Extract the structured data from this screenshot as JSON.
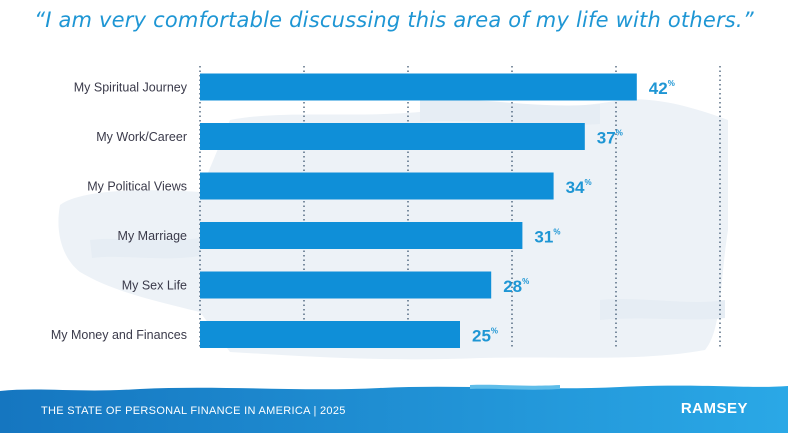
{
  "chart_data": {
    "type": "bar",
    "orientation": "horizontal",
    "title": "“I am very comfortable discussing this area of my life with others.”",
    "categories": [
      "My Spiritual Journey",
      "My Work/Career",
      "My Political Views",
      "My Marriage",
      "My Sex Life",
      "My Money and Finances"
    ],
    "values": [
      42,
      37,
      34,
      31,
      28,
      25
    ],
    "value_suffix": "%",
    "xlim": [
      0,
      50
    ],
    "gridlines": [
      10,
      20,
      30,
      40,
      50
    ],
    "grid": true,
    "legend": "none"
  },
  "footer": {
    "caption": "THE STATE OF PERSONAL FINANCE IN AMERICA | 2025",
    "brand": "RAMSEY"
  },
  "colors": {
    "bar": "#0f8fd8",
    "accent": "#1e96d4",
    "label": "#3a3a4a",
    "grid": "#2f4a66",
    "wash": "#edf2f7",
    "footer_dark": "#1576c0",
    "footer_light": "#2aa8e6"
  }
}
